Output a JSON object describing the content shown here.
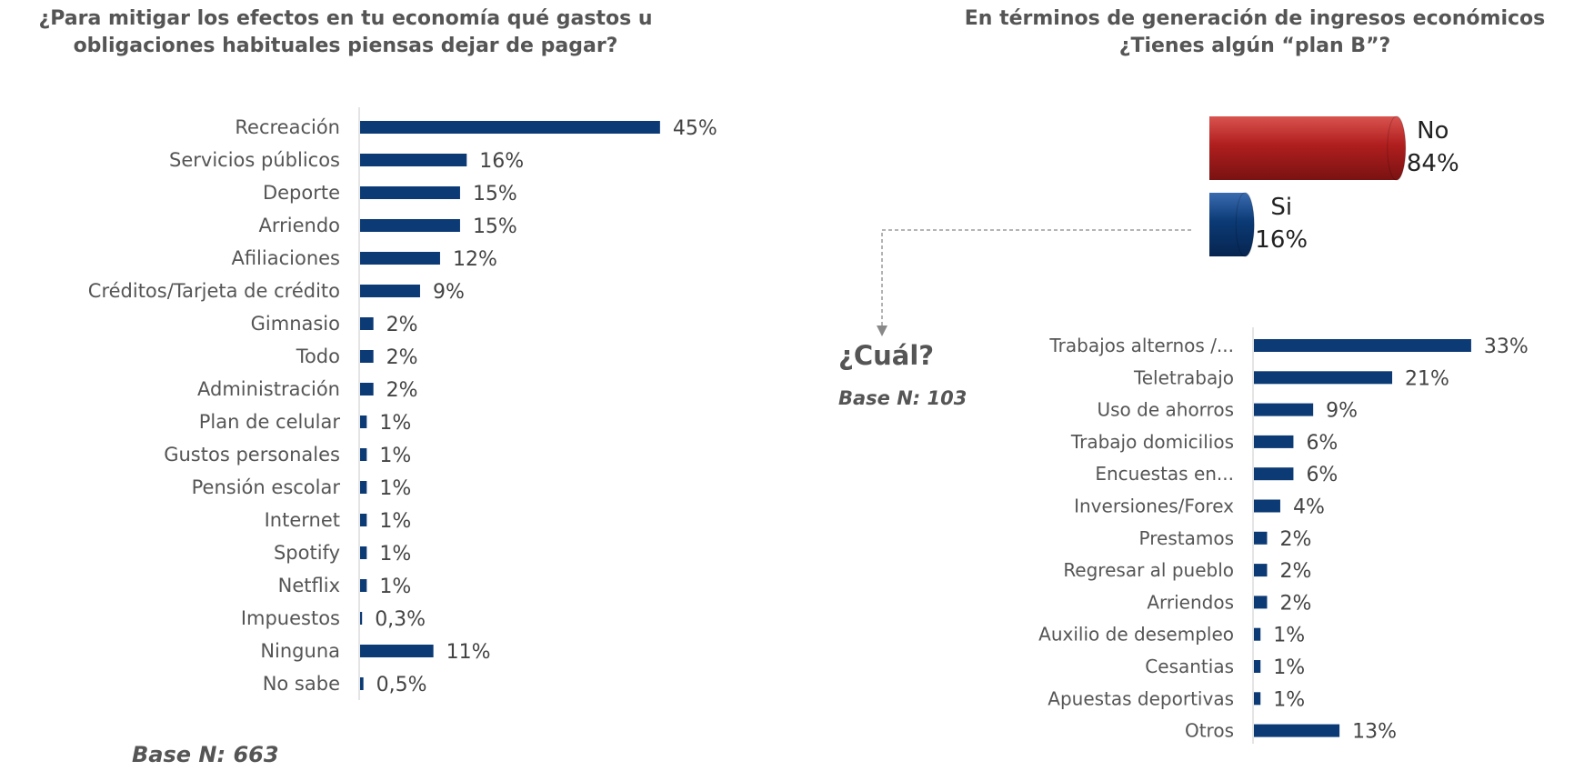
{
  "left_title": "¿Para mitigar los efectos en tu economía qué gastos u obligaciones habituales piensas dejar de pagar?",
  "right_title": "En términos de generación de ingresos económicos ¿Tienes algún “plan B”?",
  "base_left": "Base N: 663",
  "base_right": "Base N: 103",
  "cual": "¿Cuál?",
  "colors": {
    "bar": "#0b3a75",
    "no": "#b01e1e",
    "si": "#0b3a75"
  },
  "chart_data": [
    {
      "type": "bar",
      "orientation": "horizontal",
      "title": "¿Para mitigar los efectos en tu economía qué gastos u obligaciones habituales piensas dejar de pagar?",
      "categories": [
        "Recreación",
        "Servicios públicos",
        "Deporte",
        "Arriendo",
        "Afiliaciones",
        "Créditos/Tarjeta de crédito",
        "Gimnasio",
        "Todo",
        "Administración",
        "Plan de celular",
        "Gustos personales",
        "Pensión escolar",
        "Internet",
        "Spotify",
        "Netflix",
        "Impuestos",
        "Ninguna",
        "No sabe"
      ],
      "values": [
        45,
        16,
        15,
        15,
        12,
        9,
        2,
        2,
        2,
        1,
        1,
        1,
        1,
        1,
        1,
        0.3,
        11,
        0.5
      ],
      "value_labels": [
        "45%",
        "16%",
        "15%",
        "15%",
        "12%",
        "9%",
        "2%",
        "2%",
        "2%",
        "1%",
        "1%",
        "1%",
        "1%",
        "1%",
        "1%",
        "0,3%",
        "11%",
        "0,5%"
      ]
    },
    {
      "type": "bar",
      "orientation": "horizontal",
      "title": "En términos de generación de ingresos económicos ¿Tienes algún “plan B”?",
      "categories": [
        "No",
        "Si"
      ],
      "values": [
        84,
        16
      ],
      "value_labels": [
        "84%",
        "16%"
      ]
    },
    {
      "type": "bar",
      "orientation": "horizontal",
      "title": "¿Cuál?",
      "categories": [
        "Trabajos alternos /...",
        "Teletrabajo",
        "Uso de ahorros",
        "Trabajo domicilios",
        "Encuestas en...",
        "Inversiones/Forex",
        "Prestamos",
        "Regresar al pueblo",
        "Arriendos",
        "Auxilio de desempleo",
        "Cesantias",
        "Apuestas deportivas",
        "Otros"
      ],
      "values": [
        33,
        21,
        9,
        6,
        6,
        4,
        2,
        2,
        2,
        1,
        1,
        1,
        13
      ],
      "value_labels": [
        "33%",
        "21%",
        "9%",
        "6%",
        "6%",
        "4%",
        "2%",
        "2%",
        "2%",
        "1%",
        "1%",
        "1%",
        "13%"
      ]
    }
  ]
}
